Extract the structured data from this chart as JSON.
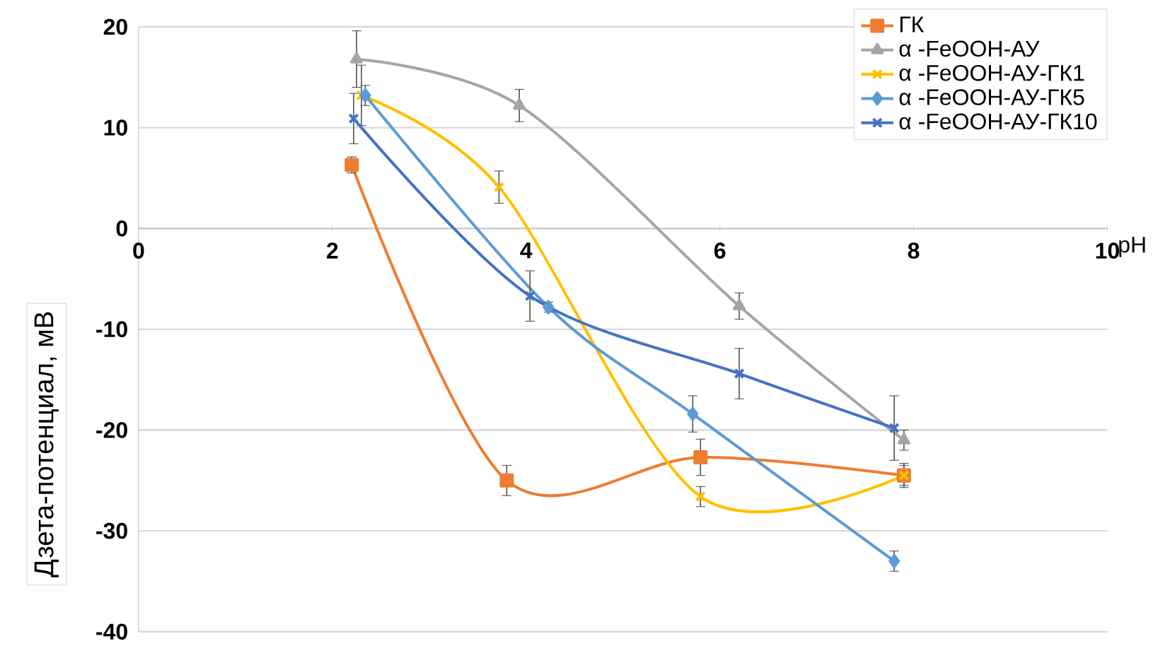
{
  "chart_data": {
    "type": "line",
    "xlabel": "pH",
    "ylabel": "Дзета-потенциал, мВ",
    "xlim": [
      0,
      10
    ],
    "ylim": [
      -40,
      20
    ],
    "xticks": [
      0,
      2,
      4,
      6,
      8,
      10
    ],
    "yticks": [
      -40,
      -30,
      -20,
      -10,
      0,
      10,
      20
    ],
    "grid": "y",
    "legend": "top right",
    "series": [
      {
        "name": "ГК",
        "color": "#ed7d31",
        "marker": "square",
        "x": [
          2.2,
          3.8,
          5.8,
          7.9
        ],
        "values": [
          6.3,
          -25,
          -22.7,
          -24.5
        ],
        "errors": [
          0.8,
          1.5,
          1.8,
          1.2
        ]
      },
      {
        "name": "α -FeOOH-АУ",
        "color": "#a5a5a5",
        "marker": "triangle",
        "x": [
          2.25,
          3.93,
          6.2,
          7.9
        ],
        "values": [
          16.8,
          12.2,
          -7.7,
          -21
        ],
        "errors": [
          2.8,
          1.6,
          1.3,
          1
        ]
      },
      {
        "name": "α -FeOOH-АУ-ГК1",
        "color": "#ffc000",
        "marker": "cross",
        "x": [
          2.3,
          3.72,
          5.8,
          7.9
        ],
        "values": [
          13.2,
          4.1,
          -26.6,
          -24.5
        ],
        "errors": [
          3,
          1.6,
          1,
          1
        ]
      },
      {
        "name": "α -FeOOH-АУ-ГК5",
        "color": "#5b9bd5",
        "marker": "diamond",
        "x": [
          2.34,
          4.23,
          5.72,
          7.8
        ],
        "values": [
          13.2,
          -7.8,
          -18.4,
          -33
        ],
        "errors": [
          1,
          0.5,
          1.8,
          1
        ]
      },
      {
        "name": "α -FeOOH-АУ-ГК10",
        "color": "#4472c4",
        "marker": "cross",
        "x": [
          2.22,
          4.04,
          6.2,
          7.8
        ],
        "values": [
          10.9,
          -6.7,
          -14.4,
          -19.8
        ],
        "errors": [
          2.5,
          2.5,
          2.5,
          3.2
        ]
      }
    ]
  }
}
